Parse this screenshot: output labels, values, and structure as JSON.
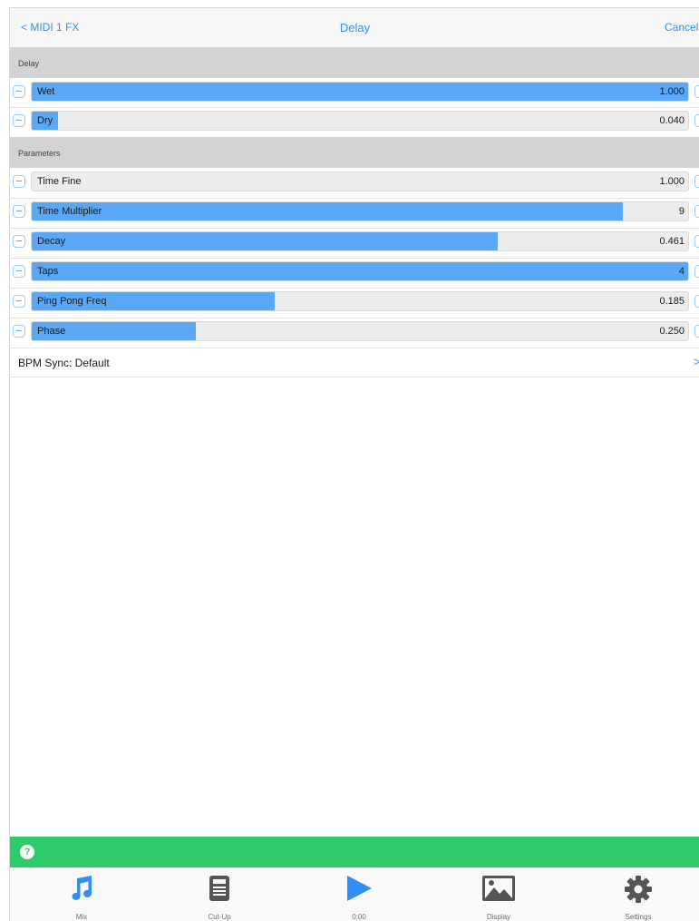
{
  "navbar": {
    "back_label": "< MIDI 1 FX",
    "title": "Delay",
    "cancel_label": "Cancel"
  },
  "sections": {
    "delay": "Delay",
    "parameters": "Parameters"
  },
  "delay_params": [
    {
      "label": "Wet",
      "value": "1.000",
      "level": 1.0
    },
    {
      "label": "Dry",
      "value": "0.040",
      "level": 0.04
    }
  ],
  "parameters": [
    {
      "label": "Time Fine",
      "value": "1.000",
      "level": 0.0
    },
    {
      "label": "Time Multiplier",
      "value": "9",
      "level": 0.9
    },
    {
      "label": "Decay",
      "value": "0.461",
      "level": 0.71
    },
    {
      "label": "Taps",
      "value": "4",
      "level": 1.0
    },
    {
      "label": "Ping Pong Freq",
      "value": "0.185",
      "level": 0.37
    },
    {
      "label": "Phase",
      "value": "0.250",
      "level": 0.25
    }
  ],
  "bpm_sync": {
    "label": "BPM Sync: Default",
    "chevron": ">"
  },
  "help": {
    "icon": "question-icon",
    "glyph": "?"
  },
  "tabs": [
    {
      "label": "Mix",
      "icon": "music-note-icon",
      "active": true
    },
    {
      "label": "Cut-Up",
      "icon": "document-icon",
      "active": false
    },
    {
      "label": "0:00",
      "icon": "play-icon",
      "active": true
    },
    {
      "label": "Display",
      "icon": "image-icon",
      "active": false
    },
    {
      "label": "Settings",
      "icon": "gear-icon",
      "active": false
    }
  ],
  "colors": {
    "accent": "#2f8ff2",
    "slider_fill": "#5aa8f5",
    "green_bar": "#2ecb6b",
    "tab_inactive": "#555555"
  }
}
